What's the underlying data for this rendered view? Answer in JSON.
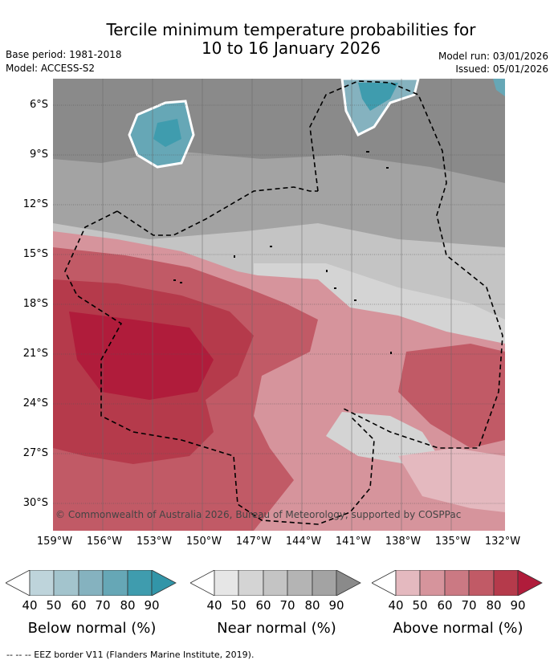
{
  "title_line1": "Tercile minimum temperature probabilities for",
  "title_line2": "10 to 16 January 2026",
  "base_period": "Base period: 1981-2018",
  "model": "Model: ACCESS-S2",
  "model_run": "Model run: 03/01/2026",
  "issued": "Issued: 05/01/2026",
  "copyright": "© Commonwealth of Australia 2026, Bureau of Meteorology, supported by COSPPac",
  "lat_labels": [
    "6°S",
    "9°S",
    "12°S",
    "15°S",
    "18°S",
    "21°S",
    "24°S",
    "27°S",
    "30°S"
  ],
  "lon_labels": [
    "159°W",
    "156°W",
    "153°W",
    "150°W",
    "147°W",
    "144°W",
    "141°W",
    "138°W",
    "135°W",
    "132°W"
  ],
  "colorbars": [
    {
      "title": "Below normal (%)",
      "ticks": [
        "40",
        "50",
        "60",
        "70",
        "80",
        "90"
      ],
      "colors": [
        "#ffffff",
        "#bed4db",
        "#a3c4cd",
        "#85b2bf",
        "#66a7b6",
        "#3f9cae",
        "#3295a8"
      ]
    },
    {
      "title": "Near normal (%)",
      "ticks": [
        "40",
        "50",
        "60",
        "70",
        "80",
        "90"
      ],
      "colors": [
        "#ffffff",
        "#e6e6e6",
        "#d4d4d4",
        "#c4c4c4",
        "#b4b4b4",
        "#a3a3a3",
        "#8a8a8a"
      ]
    },
    {
      "title": "Above normal (%)",
      "ticks": [
        "40",
        "50",
        "60",
        "70",
        "80",
        "90"
      ],
      "colors": [
        "#ffffff",
        "#e4b9bf",
        "#d6949c",
        "#cb7983",
        "#c15a66",
        "#b53a4b",
        "#b01c3b"
      ]
    }
  ],
  "legend_eez": "--  --  -- EEZ border V11 (Flanders Marine Institute, 2019)."
}
